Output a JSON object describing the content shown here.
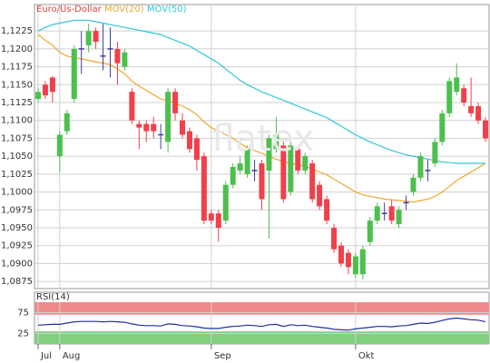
{
  "chart_data": [
    {
      "type": "candlestick",
      "title": "Euro/Us-Dollar",
      "title_color": "#e0403a",
      "watermark": "flatex",
      "categories": [
        "Jul",
        null,
        null,
        "Aug",
        null,
        null,
        null,
        null,
        null,
        null,
        null,
        null,
        null,
        null,
        null,
        null,
        null,
        null,
        null,
        null,
        null,
        null,
        null,
        null,
        "Sep",
        null,
        null,
        null,
        null,
        null,
        null,
        null,
        null,
        null,
        null,
        null,
        null,
        null,
        null,
        null,
        null,
        null,
        null,
        null,
        "Okt",
        null,
        null,
        null,
        null,
        null,
        null,
        null,
        null,
        null,
        null,
        null,
        null,
        null,
        null,
        null,
        null,
        null,
        null
      ],
      "open": [
        1.113,
        1.115,
        1.116,
        1.105,
        1.1085,
        1.113,
        1.12,
        1.1205,
        1.1225,
        1.119,
        1.12,
        1.12,
        1.1175,
        1.114,
        1.1095,
        1.1095,
        1.1095,
        1.108,
        1.107,
        1.114,
        1.11,
        1.1085,
        1.1075,
        1.105,
        1.097,
        1.097,
        1.096,
        1.101,
        1.103,
        1.1025,
        1.103,
        1.104,
        1.103,
        1.106,
        1.1065,
        1.1,
        1.106,
        1.103,
        1.104,
        1.101,
        1.099,
        1.095,
        1.0925,
        1.0915,
        1.0885,
        1.0885,
        1.093,
        1.096,
        1.097,
        1.098,
        1.0955,
        1.0985,
        1.1,
        1.102,
        1.103,
        1.104,
        1.107,
        1.111,
        1.114,
        1.1145,
        1.112,
        1.112,
        1.11
      ],
      "high": [
        1.1145,
        1.1155,
        1.1162,
        1.1085,
        1.1115,
        1.1205,
        1.1225,
        1.1235,
        1.123,
        1.1235,
        1.123,
        1.121,
        1.12,
        1.1145,
        1.11,
        1.11,
        1.1105,
        1.1095,
        1.1145,
        1.1145,
        1.111,
        1.109,
        1.108,
        1.1055,
        1.0975,
        1.0975,
        1.1015,
        1.104,
        1.105,
        1.1065,
        1.1045,
        1.1045,
        1.108,
        1.1105,
        1.107,
        1.107,
        1.1065,
        1.1055,
        1.1045,
        1.1015,
        1.0995,
        1.0955,
        1.093,
        1.092,
        1.0915,
        1.0925,
        1.0965,
        1.0985,
        1.0985,
        1.099,
        1.098,
        1.0995,
        1.1025,
        1.1055,
        1.1045,
        1.1075,
        1.1115,
        1.116,
        1.118,
        1.115,
        1.116,
        1.1125,
        1.1105
      ],
      "low": [
        1.1125,
        1.113,
        1.1125,
        1.1028,
        1.108,
        1.1125,
        1.1165,
        1.1195,
        1.12,
        1.117,
        1.116,
        1.115,
        1.117,
        1.1095,
        1.106,
        1.107,
        1.1075,
        1.106,
        1.1055,
        1.11,
        1.1075,
        1.1055,
        1.103,
        1.0955,
        1.0955,
        1.093,
        1.0955,
        1.1005,
        1.1025,
        1.102,
        1.1015,
        1.0975,
        1.0935,
        1.1055,
        1.0985,
        1.0995,
        1.1025,
        1.1025,
        1.0985,
        1.0975,
        1.0955,
        1.0915,
        1.0895,
        1.0885,
        1.088,
        1.0878,
        1.0925,
        1.0955,
        1.096,
        1.0955,
        1.095,
        1.0975,
        1.0995,
        1.1015,
        1.1015,
        1.1035,
        1.1065,
        1.1105,
        1.1135,
        1.112,
        1.1105,
        1.1095,
        1.107
      ],
      "close": [
        1.114,
        1.1135,
        1.114,
        1.108,
        1.111,
        1.12,
        1.12,
        1.1225,
        1.121,
        1.119,
        1.12,
        1.118,
        1.1195,
        1.11,
        1.109,
        1.1085,
        1.1085,
        1.108,
        1.114,
        1.111,
        1.108,
        1.106,
        1.1045,
        1.096,
        1.096,
        1.095,
        1.101,
        1.1035,
        1.104,
        1.106,
        1.103,
        1.099,
        1.1075,
        1.108,
        1.099,
        1.1065,
        1.103,
        1.105,
        1.099,
        1.098,
        1.096,
        1.092,
        1.09,
        1.0895,
        1.091,
        1.092,
        1.096,
        1.098,
        1.097,
        1.096,
        1.0975,
        1.0985,
        1.102,
        1.105,
        1.103,
        1.107,
        1.111,
        1.1155,
        1.116,
        1.1125,
        1.111,
        1.11,
        1.1075
      ],
      "up_color": "#4cc04c",
      "down_color": "#f0404a",
      "doji_color": "#40409a",
      "series": [
        {
          "name": "MOV(20)",
          "color": "#f0a830",
          "values": [
            1.122,
            1.1212,
            1.1205,
            1.1195,
            1.119,
            1.1188,
            1.1186,
            1.1184,
            1.1182,
            1.118,
            1.1178,
            1.1172,
            1.1165,
            1.1155,
            1.1148,
            1.1142,
            1.1136,
            1.113,
            1.1127,
            1.1124,
            1.112,
            1.1115,
            1.1108,
            1.1098,
            1.109,
            1.1085,
            1.108,
            1.1075,
            1.1068,
            1.1062,
            1.1058,
            1.1054,
            1.105,
            1.1046,
            1.1042,
            1.104,
            1.1038,
            1.1036,
            1.1032,
            1.1028,
            1.1024,
            1.1018,
            1.1012,
            1.1006,
            1.1,
            1.0996,
            1.0994,
            1.0992,
            1.099,
            1.0989,
            1.0988,
            1.0987,
            1.0986,
            1.0988,
            1.099,
            1.0994,
            1.1,
            1.1008,
            1.1016,
            1.1022,
            1.1028,
            1.1034,
            1.104
          ]
        },
        {
          "name": "MOV(50)",
          "color": "#30c8d8",
          "values": [
            1.1225,
            1.123,
            1.1234,
            1.1236,
            1.1238,
            1.124,
            1.124,
            1.124,
            1.1238,
            1.1236,
            1.1234,
            1.1232,
            1.123,
            1.1228,
            1.1226,
            1.1224,
            1.1222,
            1.122,
            1.1216,
            1.1212,
            1.1208,
            1.1204,
            1.1198,
            1.1192,
            1.1186,
            1.118,
            1.1172,
            1.1164,
            1.1156,
            1.115,
            1.1145,
            1.114,
            1.1136,
            1.1132,
            1.1128,
            1.1124,
            1.112,
            1.1116,
            1.1112,
            1.1108,
            1.1104,
            1.1098,
            1.1092,
            1.1086,
            1.108,
            1.1075,
            1.107,
            1.1066,
            1.1062,
            1.1058,
            1.1055,
            1.1052,
            1.105,
            1.1048,
            1.1046,
            1.1044,
            1.1042,
            1.1041,
            1.104,
            1.104,
            1.104,
            1.104,
            1.104
          ]
        }
      ],
      "ylim": [
        1.0865,
        1.1262
      ],
      "yticks": [
        {
          "value": 1.0875,
          "label": "1,0875"
        },
        {
          "value": 1.09,
          "label": "1,0900"
        },
        {
          "value": 1.0925,
          "label": "1,0925"
        },
        {
          "value": 1.095,
          "label": "1,0950"
        },
        {
          "value": 1.0975,
          "label": "1,0975"
        },
        {
          "value": 1.1,
          "label": "1,1000"
        },
        {
          "value": 1.1025,
          "label": "1,1025"
        },
        {
          "value": 1.105,
          "label": "1,1050"
        },
        {
          "value": 1.1075,
          "label": "1,1075"
        },
        {
          "value": 1.11,
          "label": "1,1100"
        },
        {
          "value": 1.1125,
          "label": "1,1125"
        },
        {
          "value": 1.115,
          "label": "1,1150"
        },
        {
          "value": 1.1175,
          "label": "1,1175"
        },
        {
          "value": 1.12,
          "label": "1,1200"
        },
        {
          "value": 1.1225,
          "label": "1,1225"
        }
      ],
      "grid": true
    },
    {
      "type": "line",
      "title": "RSI(14)",
      "series": [
        {
          "name": "RSI(14)",
          "color": "#2030a0",
          "values": [
            45,
            46,
            47,
            47,
            50,
            53,
            54,
            54,
            54,
            53,
            54,
            53,
            52,
            48,
            45,
            44,
            44,
            43,
            48,
            47,
            44,
            43,
            41,
            38,
            37,
            37,
            40,
            42,
            43,
            45,
            44,
            42,
            46,
            47,
            42,
            46,
            44,
            45,
            42,
            40,
            38,
            35,
            34,
            33,
            36,
            38,
            40,
            42,
            42,
            41,
            43,
            44,
            47,
            50,
            49,
            52,
            56,
            60,
            62,
            60,
            58,
            57,
            53
          ]
        }
      ],
      "bands": [
        {
          "from": 70,
          "to": 100,
          "color": "#f08a8a"
        },
        {
          "from": 0,
          "to": 30,
          "color": "#80d080"
        }
      ],
      "ylim": [
        0,
        100
      ],
      "yticks": [
        25,
        75
      ],
      "grid": true
    }
  ]
}
